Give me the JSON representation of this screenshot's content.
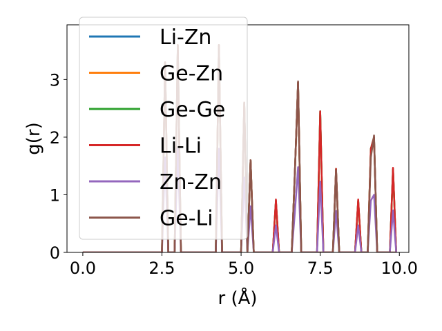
{
  "chart_data": {
    "type": "line",
    "title": "",
    "xlabel": "r (Å)",
    "ylabel": "g(r)",
    "xlim": [
      -0.5,
      10.3
    ],
    "ylim": [
      0,
      3.95
    ],
    "xticks": [
      0.0,
      2.5,
      5.0,
      7.5,
      10.0
    ],
    "xtick_labels": [
      "0.0",
      "2.5",
      "5.0",
      "7.5",
      "10.0"
    ],
    "yticks": [
      0,
      1,
      2,
      3
    ],
    "ytick_labels": [
      "0",
      "1",
      "2",
      "3"
    ],
    "grid": false,
    "legend_position": "upper-left",
    "x": [
      0.0,
      2.5,
      2.6,
      2.7,
      2.8,
      2.9,
      3.0,
      3.1,
      4.2,
      4.3,
      4.4,
      5.0,
      5.1,
      5.2,
      5.3,
      5.4,
      6.0,
      6.1,
      6.2,
      6.6,
      6.7,
      6.8,
      6.9,
      7.4,
      7.5,
      7.6,
      7.9,
      8.0,
      8.1,
      8.6,
      8.7,
      8.8,
      9.0,
      9.1,
      9.2,
      9.3,
      9.7,
      9.8,
      9.9
    ],
    "series": [
      {
        "name": "Li-Zn",
        "color": "#1f77b4",
        "values": [
          0,
          0,
          3.3,
          0,
          0,
          0,
          3.6,
          0,
          0,
          3.6,
          0,
          0,
          2.6,
          0,
          1.6,
          0,
          0,
          0.9,
          0,
          0,
          1.4,
          2.95,
          0,
          0,
          2.45,
          0,
          0,
          1.45,
          0,
          0,
          0.9,
          0,
          0,
          1.8,
          2.0,
          0,
          0,
          1.45,
          0
        ]
      },
      {
        "name": "Ge-Zn",
        "color": "#ff7f0e",
        "values": [
          0,
          0,
          3.3,
          0,
          0,
          0,
          3.6,
          0,
          0,
          3.6,
          0,
          0,
          2.6,
          0,
          1.6,
          0,
          0,
          0.9,
          0,
          0,
          1.4,
          2.95,
          0,
          0,
          2.45,
          0,
          0,
          1.45,
          0,
          0,
          0.9,
          0,
          0,
          1.8,
          2.0,
          0,
          0,
          1.45,
          0
        ]
      },
      {
        "name": "Ge-Ge",
        "color": "#2ca02c",
        "values": [
          0,
          0,
          3.3,
          0,
          0,
          0,
          3.6,
          0,
          0,
          3.6,
          0,
          0,
          2.6,
          0,
          1.6,
          0,
          0,
          0.9,
          0,
          0,
          1.4,
          2.95,
          0,
          0,
          2.45,
          0,
          0,
          1.45,
          0,
          0,
          0.9,
          0,
          0,
          1.8,
          2.0,
          0,
          0,
          1.45,
          0
        ]
      },
      {
        "name": "Li-Li",
        "color": "#d62728",
        "values": [
          0,
          0,
          3.3,
          0,
          0,
          0,
          3.6,
          0,
          0,
          3.6,
          0,
          0,
          2.6,
          0,
          1.6,
          0,
          0,
          0.92,
          0,
          0,
          1.4,
          2.95,
          0,
          0,
          2.45,
          0,
          0,
          1.45,
          0,
          0,
          0.92,
          0,
          0,
          1.8,
          2.0,
          0,
          0,
          1.47,
          0
        ]
      },
      {
        "name": "Zn-Zn",
        "color": "#9467bd",
        "values": [
          0,
          0,
          1.65,
          0,
          0,
          0,
          1.8,
          0,
          0,
          1.8,
          0,
          0,
          1.3,
          0,
          0.8,
          0,
          0,
          0.47,
          0,
          0,
          0.7,
          1.48,
          0,
          0,
          1.23,
          0,
          0,
          0.72,
          0,
          0,
          0.47,
          0,
          0,
          0.9,
          1.0,
          0,
          0,
          0.73,
          0
        ]
      },
      {
        "name": "Ge-Li",
        "color": "#8c564b",
        "values": [
          0,
          0,
          3.3,
          0,
          0,
          0,
          3.6,
          0,
          0,
          3.6,
          0,
          0,
          2.6,
          0,
          1.6,
          0,
          0,
          0.0,
          0,
          0,
          1.4,
          2.97,
          0,
          0,
          0.0,
          0,
          0,
          1.43,
          0,
          0,
          0.0,
          0,
          0,
          1.65,
          2.03,
          0,
          0,
          0.0,
          0
        ]
      }
    ]
  }
}
